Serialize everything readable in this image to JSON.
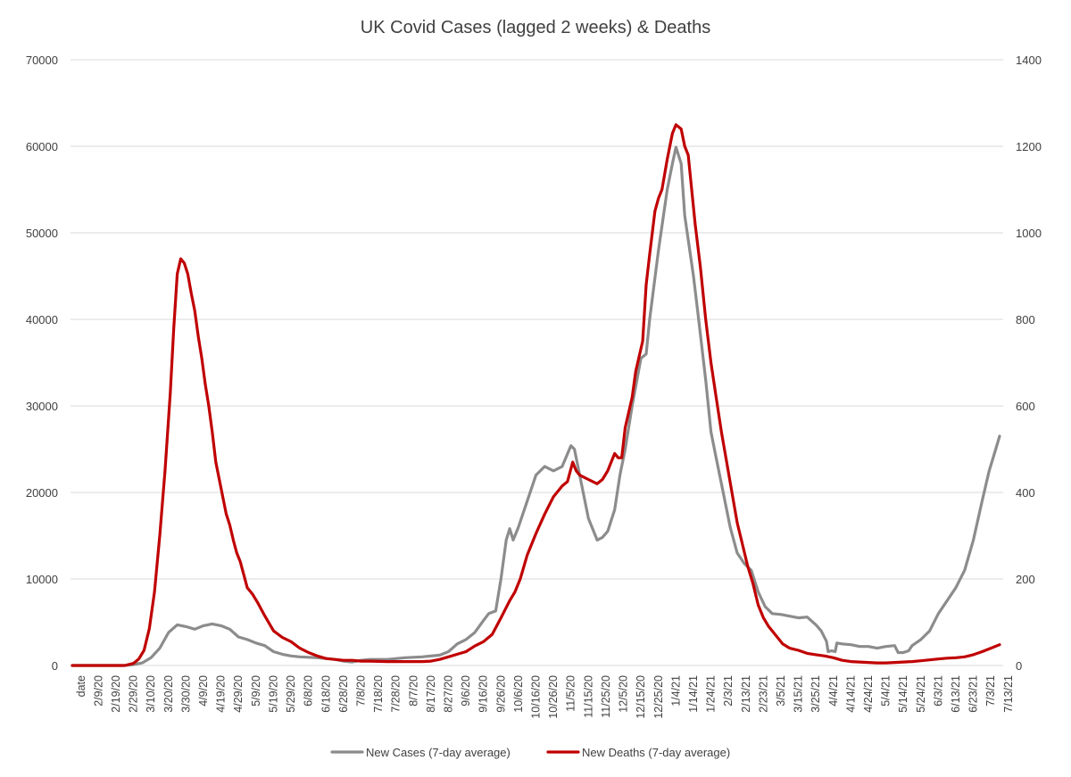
{
  "chart_data": {
    "type": "line",
    "title": "UK Covid Cases (lagged 2 weeks) & Deaths",
    "xlabel": "",
    "x_first_label": "date",
    "x_tick_labels": [
      "2/9/20",
      "2/19/20",
      "2/29/20",
      "3/10/20",
      "3/20/20",
      "3/30/20",
      "4/9/20",
      "4/19/20",
      "4/29/20",
      "5/9/20",
      "5/19/20",
      "5/29/20",
      "6/8/20",
      "6/18/20",
      "6/28/20",
      "7/8/20",
      "7/18/20",
      "7/28/20",
      "8/7/20",
      "8/17/20",
      "8/27/20",
      "9/6/20",
      "9/16/20",
      "9/26/20",
      "10/6/20",
      "10/16/20",
      "10/26/20",
      "11/5/20",
      "11/15/20",
      "11/25/20",
      "12/5/20",
      "12/15/20",
      "12/25/20",
      "1/4/21",
      "1/14/21",
      "1/24/21",
      "2/3/21",
      "2/13/21",
      "2/23/21",
      "3/5/21",
      "3/15/21",
      "3/25/21",
      "4/4/21",
      "4/14/21",
      "4/24/21",
      "5/4/21",
      "5/14/21",
      "5/24/21",
      "6/3/21",
      "6/13/21",
      "6/23/21",
      "7/3/21",
      "7/13/21"
    ],
    "y_left": {
      "ylim": [
        0,
        70000
      ],
      "ticks": [
        "0",
        "10000",
        "20000",
        "30000",
        "40000",
        "50000",
        "60000",
        "70000"
      ]
    },
    "y_right": {
      "ylim": [
        0,
        1400
      ],
      "ticks": [
        "0",
        "200",
        "400",
        "600",
        "800",
        "1000",
        "1200",
        "1400"
      ]
    },
    "x_range_days": [
      0,
      531
    ],
    "series": [
      {
        "name": "New Cases (7-day average)",
        "axis": "left",
        "color": "#8c8c8c",
        "points": [
          [
            0,
            0
          ],
          [
            30,
            0
          ],
          [
            35,
            100
          ],
          [
            40,
            300
          ],
          [
            45,
            900
          ],
          [
            50,
            2000
          ],
          [
            55,
            3800
          ],
          [
            60,
            4700
          ],
          [
            65,
            4500
          ],
          [
            70,
            4200
          ],
          [
            75,
            4600
          ],
          [
            80,
            4800
          ],
          [
            85,
            4600
          ],
          [
            90,
            4200
          ],
          [
            95,
            3300
          ],
          [
            100,
            3000
          ],
          [
            105,
            2600
          ],
          [
            110,
            2300
          ],
          [
            115,
            1600
          ],
          [
            120,
            1300
          ],
          [
            125,
            1100
          ],
          [
            130,
            1000
          ],
          [
            140,
            900
          ],
          [
            145,
            800
          ],
          [
            150,
            700
          ],
          [
            155,
            500
          ],
          [
            160,
            400
          ],
          [
            165,
            600
          ],
          [
            170,
            700
          ],
          [
            180,
            700
          ],
          [
            190,
            900
          ],
          [
            200,
            1000
          ],
          [
            210,
            1200
          ],
          [
            215,
            1600
          ],
          [
            220,
            2500
          ],
          [
            225,
            3000
          ],
          [
            230,
            3800
          ],
          [
            235,
            5200
          ],
          [
            238,
            6000
          ],
          [
            242,
            6300
          ],
          [
            245,
            10000
          ],
          [
            248,
            14500
          ],
          [
            250,
            15800
          ],
          [
            252,
            14500
          ],
          [
            255,
            16000
          ],
          [
            260,
            19000
          ],
          [
            265,
            22000
          ],
          [
            270,
            23000
          ],
          [
            275,
            22500
          ],
          [
            280,
            23000
          ],
          [
            285,
            25400
          ],
          [
            287,
            25000
          ],
          [
            290,
            22000
          ],
          [
            295,
            17000
          ],
          [
            300,
            14500
          ],
          [
            303,
            14800
          ],
          [
            306,
            15500
          ],
          [
            310,
            18000
          ],
          [
            313,
            22000
          ],
          [
            316,
            25000
          ],
          [
            320,
            30000
          ],
          [
            325,
            35500
          ],
          [
            328,
            36000
          ],
          [
            330,
            40000
          ],
          [
            335,
            48000
          ],
          [
            340,
            55000
          ],
          [
            343,
            58000
          ],
          [
            345,
            59900
          ],
          [
            348,
            58000
          ],
          [
            350,
            52000
          ],
          [
            355,
            45000
          ],
          [
            358,
            40000
          ],
          [
            362,
            33000
          ],
          [
            365,
            27000
          ],
          [
            368,
            24000
          ],
          [
            372,
            20000
          ],
          [
            376,
            16000
          ],
          [
            380,
            13000
          ],
          [
            384,
            11800
          ],
          [
            388,
            11000
          ],
          [
            392,
            8500
          ],
          [
            396,
            6800
          ],
          [
            400,
            6000
          ],
          [
            405,
            5900
          ],
          [
            410,
            5700
          ],
          [
            415,
            5500
          ],
          [
            420,
            5600
          ],
          [
            425,
            4700
          ],
          [
            428,
            4000
          ],
          [
            431,
            2800
          ],
          [
            432,
            1600
          ],
          [
            434,
            1700
          ],
          [
            436,
            1600
          ],
          [
            437,
            2600
          ],
          [
            440,
            2500
          ],
          [
            445,
            2400
          ],
          [
            450,
            2200
          ],
          [
            455,
            2200
          ],
          [
            460,
            2000
          ],
          [
            465,
            2200
          ],
          [
            470,
            2300
          ],
          [
            472,
            1500
          ],
          [
            475,
            1500
          ],
          [
            478,
            1700
          ],
          [
            480,
            2300
          ],
          [
            485,
            3000
          ],
          [
            490,
            4000
          ],
          [
            495,
            6000
          ],
          [
            500,
            7500
          ],
          [
            505,
            9000
          ],
          [
            510,
            11000
          ],
          [
            515,
            14500
          ],
          [
            520,
            19000
          ],
          [
            524,
            22500
          ],
          [
            527,
            24500
          ],
          [
            530,
            26500
          ]
        ]
      },
      {
        "name": "New Deaths (7-day average)",
        "axis": "right",
        "color": "#c00000",
        "points": [
          [
            0,
            0
          ],
          [
            30,
            0
          ],
          [
            35,
            5
          ],
          [
            38,
            15
          ],
          [
            41,
            35
          ],
          [
            44,
            85
          ],
          [
            47,
            170
          ],
          [
            50,
            300
          ],
          [
            53,
            450
          ],
          [
            56,
            630
          ],
          [
            58,
            780
          ],
          [
            60,
            905
          ],
          [
            62,
            940
          ],
          [
            64,
            930
          ],
          [
            66,
            905
          ],
          [
            68,
            860
          ],
          [
            70,
            820
          ],
          [
            72,
            760
          ],
          [
            74,
            710
          ],
          [
            76,
            650
          ],
          [
            78,
            600
          ],
          [
            80,
            540
          ],
          [
            82,
            470
          ],
          [
            84,
            430
          ],
          [
            86,
            390
          ],
          [
            88,
            350
          ],
          [
            90,
            325
          ],
          [
            92,
            290
          ],
          [
            94,
            260
          ],
          [
            96,
            240
          ],
          [
            98,
            210
          ],
          [
            100,
            180
          ],
          [
            103,
            165
          ],
          [
            106,
            145
          ],
          [
            110,
            115
          ],
          [
            115,
            80
          ],
          [
            120,
            65
          ],
          [
            125,
            55
          ],
          [
            130,
            40
          ],
          [
            135,
            30
          ],
          [
            140,
            22
          ],
          [
            145,
            16
          ],
          [
            150,
            14
          ],
          [
            155,
            12
          ],
          [
            160,
            12
          ],
          [
            165,
            10
          ],
          [
            170,
            10
          ],
          [
            180,
            9
          ],
          [
            190,
            9
          ],
          [
            200,
            9
          ],
          [
            205,
            10
          ],
          [
            210,
            14
          ],
          [
            215,
            20
          ],
          [
            220,
            26
          ],
          [
            225,
            32
          ],
          [
            230,
            45
          ],
          [
            235,
            55
          ],
          [
            240,
            72
          ],
          [
            245,
            110
          ],
          [
            250,
            150
          ],
          [
            253,
            170
          ],
          [
            256,
            200
          ],
          [
            260,
            255
          ],
          [
            265,
            305
          ],
          [
            270,
            350
          ],
          [
            275,
            390
          ],
          [
            280,
            415
          ],
          [
            283,
            425
          ],
          [
            286,
            470
          ],
          [
            288,
            450
          ],
          [
            290,
            440
          ],
          [
            295,
            430
          ],
          [
            300,
            420
          ],
          [
            303,
            430
          ],
          [
            306,
            450
          ],
          [
            308,
            470
          ],
          [
            310,
            490
          ],
          [
            312,
            480
          ],
          [
            314,
            480
          ],
          [
            316,
            550
          ],
          [
            320,
            620
          ],
          [
            322,
            680
          ],
          [
            326,
            750
          ],
          [
            328,
            880
          ],
          [
            330,
            950
          ],
          [
            333,
            1050
          ],
          [
            335,
            1080
          ],
          [
            337,
            1100
          ],
          [
            340,
            1170
          ],
          [
            343,
            1230
          ],
          [
            345,
            1250
          ],
          [
            348,
            1240
          ],
          [
            350,
            1200
          ],
          [
            352,
            1180
          ],
          [
            354,
            1100
          ],
          [
            356,
            1020
          ],
          [
            359,
            920
          ],
          [
            362,
            800
          ],
          [
            365,
            700
          ],
          [
            368,
            620
          ],
          [
            371,
            540
          ],
          [
            374,
            470
          ],
          [
            377,
            400
          ],
          [
            380,
            330
          ],
          [
            383,
            280
          ],
          [
            386,
            230
          ],
          [
            389,
            190
          ],
          [
            392,
            140
          ],
          [
            395,
            110
          ],
          [
            398,
            90
          ],
          [
            402,
            70
          ],
          [
            406,
            50
          ],
          [
            410,
            40
          ],
          [
            415,
            35
          ],
          [
            420,
            28
          ],
          [
            425,
            25
          ],
          [
            430,
            22
          ],
          [
            435,
            18
          ],
          [
            440,
            12
          ],
          [
            445,
            9
          ],
          [
            450,
            8
          ],
          [
            455,
            7
          ],
          [
            460,
            6
          ],
          [
            465,
            6
          ],
          [
            470,
            7
          ],
          [
            475,
            8
          ],
          [
            480,
            9
          ],
          [
            485,
            11
          ],
          [
            490,
            13
          ],
          [
            495,
            15
          ],
          [
            500,
            17
          ],
          [
            505,
            18
          ],
          [
            510,
            20
          ],
          [
            515,
            25
          ],
          [
            520,
            32
          ],
          [
            525,
            40
          ],
          [
            530,
            48
          ]
        ]
      }
    ],
    "legend_position": "bottom",
    "grid": true
  }
}
